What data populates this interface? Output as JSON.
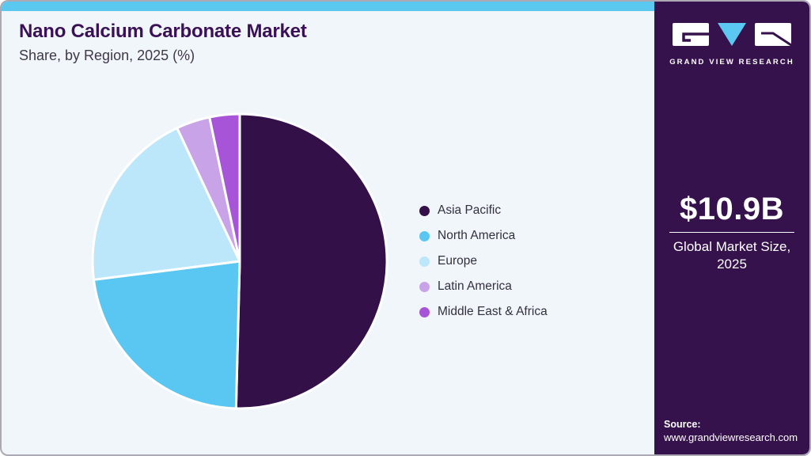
{
  "header": {
    "title": "Nano Calcium Carbonate Market",
    "subtitle": "Share, by Region, 2025 (%)"
  },
  "sidebar": {
    "logo_text": "GRAND VIEW RESEARCH",
    "market_size": "$10.9B",
    "market_size_label_line1": "Global Market Size,",
    "market_size_label_line2": "2025",
    "source_label": "Source:",
    "source_url": "www.grandviewresearch.com",
    "background": "#36124D"
  },
  "colors": {
    "accent_bar": "#5BC8F0",
    "card_background": "#F1F6FA",
    "card_border": "#ACA9B5",
    "title_text": "#3A1157",
    "subtitle_text": "#3F3849",
    "legend_text": "#33303F",
    "pie_stroke": "#FFFFFF",
    "logo_triangle": "#5AC8F0",
    "logo_block": "#FFFFFF"
  },
  "chart_data": {
    "type": "pie",
    "title": "Nano Calcium Carbonate Market Share, by Region, 2025 (%)",
    "unit": "%",
    "start_angle_deg_from_top": 0,
    "direction": "clockwise",
    "legend_position": "right",
    "slices": [
      {
        "label": "Asia Pacific",
        "value": 50.4,
        "color": "#341048"
      },
      {
        "label": "North America",
        "value": 22.6,
        "color": "#5AC7F2"
      },
      {
        "label": "Europe",
        "value": 20.0,
        "color": "#BCE7FA"
      },
      {
        "label": "Latin America",
        "value": 3.7,
        "color": "#C9A3E8"
      },
      {
        "label": "Middle East & Africa",
        "value": 3.3,
        "color": "#A854D8"
      }
    ]
  }
}
